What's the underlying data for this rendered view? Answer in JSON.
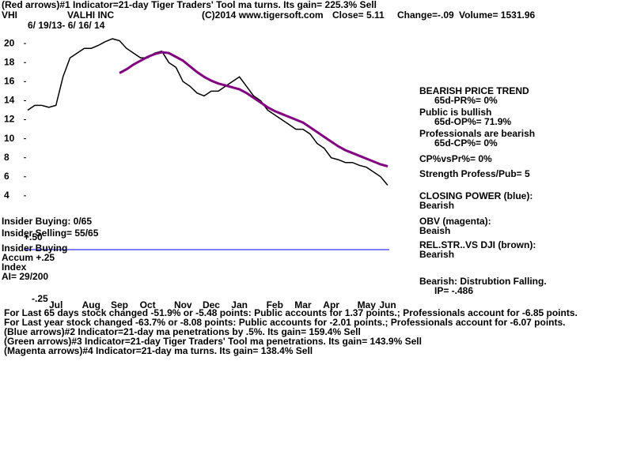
{
  "header": {
    "line1": "(Red arrows)#1 Indicator=21-day Tiger Traders' Tool ma turns. Its gain= 225.3% Sell",
    "symbol": "VHI",
    "name": "VALHI INC",
    "copyright": "(C)2014 www.tigersoft.com",
    "close": "Close=  5.11",
    "change": "Change=-.09",
    "volume": "Volume= 1531.96",
    "dates": "6/ 19/13- 6/ 16/ 14"
  },
  "chart_data": {
    "type": "line",
    "categories": [
      null,
      null,
      null,
      null,
      "Jul",
      null,
      null,
      null,
      null,
      "Aug",
      null,
      null,
      null,
      "Sep",
      null,
      null,
      null,
      "Oct",
      null,
      null,
      null,
      null,
      "Nov",
      null,
      null,
      null,
      "Dec",
      null,
      null,
      null,
      "Jan",
      null,
      null,
      null,
      null,
      "Feb",
      null,
      null,
      null,
      "Mar",
      null,
      null,
      null,
      "Apr",
      null,
      null,
      null,
      null,
      "May",
      null,
      null,
      "Jun"
    ],
    "series": [
      {
        "name": "Price",
        "color": "#000000",
        "values": [
          13,
          13.5,
          13.5,
          13.3,
          13.5,
          16.5,
          18.5,
          19,
          19.5,
          19.5,
          19.8,
          20.2,
          20.5,
          20.3,
          19.5,
          19,
          18.5,
          18.5,
          19,
          19.2,
          18,
          17.5,
          16,
          15.5,
          14.8,
          14.5,
          15,
          15,
          15.5,
          16,
          16.5,
          15.5,
          14.5,
          14,
          13,
          12.5,
          12,
          11.5,
          11,
          11,
          10.5,
          9.5,
          9,
          8,
          7.8,
          7.5,
          7.5,
          7.2,
          7,
          6.5,
          6,
          5.11
        ]
      },
      {
        "name": "65-day MA",
        "color": "#800080",
        "values": [
          null,
          null,
          null,
          null,
          null,
          null,
          null,
          null,
          null,
          null,
          null,
          null,
          null,
          16.9,
          17.3,
          17.8,
          18.2,
          18.6,
          18.9,
          19.1,
          19.0,
          18.6,
          18.2,
          17.6,
          17.0,
          16.5,
          16.1,
          15.8,
          15.6,
          15.4,
          15.2,
          14.8,
          14.3,
          13.8,
          13.3,
          12.9,
          12.6,
          12.3,
          12.0,
          11.7,
          11.2,
          10.7,
          10.2,
          9.7,
          9.2,
          8.8,
          8.5,
          8.2,
          7.9,
          7.6,
          7.3,
          7.1
        ]
      }
    ],
    "ylim": [
      1.5,
      23
    ],
    "yticks": [
      4,
      6,
      8,
      10,
      12,
      14,
      16,
      18,
      20
    ]
  },
  "right_panel": [
    "BEARISH PRICE TREND",
    "65d-PR%= 0%",
    "Public is bullish",
    "65d-OP%= 71.9%",
    "Professionals are bearish",
    "65d-CP%= 0%",
    "CP%vsPr%=  0%",
    "Strength Profess/Pub= 5",
    "CLOSING POWER (blue):",
    "Bearish",
    "OBV (magenta):",
    "Beaish",
    "REL.STR..VS DJI (brown):",
    "Bearish",
    "Bearish: Distrubtion Falling.",
    "IP= -.486"
  ],
  "left_panel": [
    "Insider Buying: 0/65",
    "Insider Selling= 55/65",
    "+.50",
    "Insider Buying",
    "Accum  +.25",
    "Index",
    "AI= 29/200",
    "-.25"
  ],
  "footer": [
    "For Last 65 days stock changed -51.9% or -5.48 points:  Public accounts for  1.37 points.;  Professionals account for -6.85 points.",
    "For Last year stock changed -63.7% or -8.08 points:  Public accounts for -2.01 points.;  Professionals account for -6.07 points.",
    "(Blue arrows)#2 Indicator=21-day ma penetrations by .5%. Its gain= 159.4% Sell",
    "(Green arrows)#3 Indicator=21-day Tiger Traders' Tool ma penetrations. Its gain= 143.9% Sell",
    "(Magenta arrows)#4 Indicator=21-day ma turns. Its gain= 138.4% Sell"
  ]
}
